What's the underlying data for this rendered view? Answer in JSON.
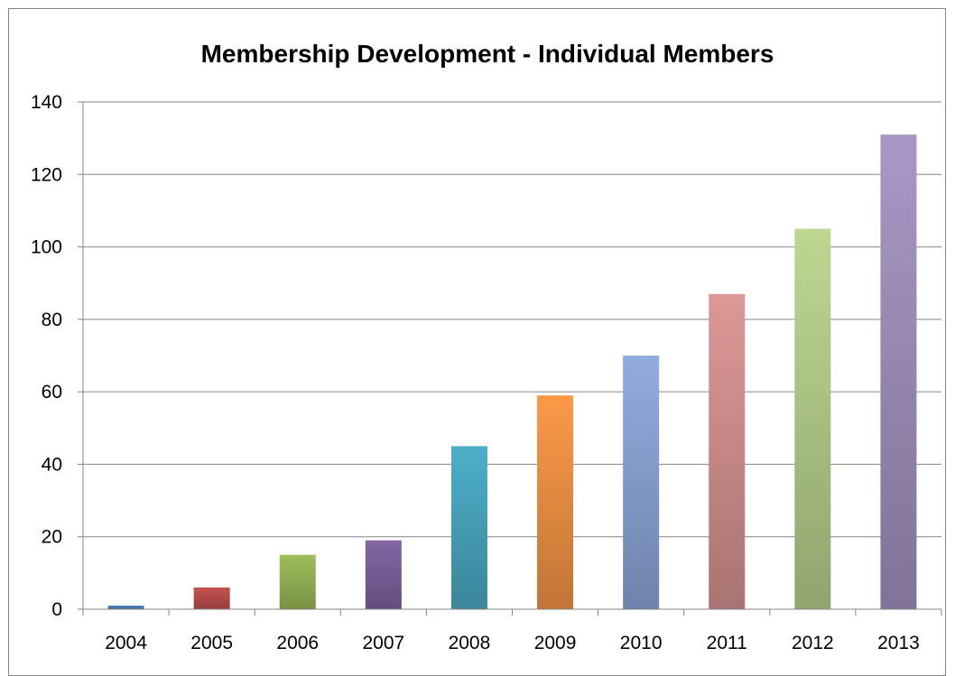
{
  "chart_data": {
    "type": "bar",
    "title": "Membership Development - Individual Members",
    "xlabel": "",
    "ylabel": "",
    "categories": [
      "2004",
      "2005",
      "2006",
      "2007",
      "2008",
      "2009",
      "2010",
      "2011",
      "2012",
      "2013"
    ],
    "values": [
      1,
      6,
      15,
      19,
      45,
      59,
      70,
      87,
      105,
      131
    ],
    "ylim": [
      0,
      140
    ],
    "yticks": [
      "0",
      "20",
      "40",
      "60",
      "80",
      "100",
      "120",
      "140"
    ],
    "grid": true,
    "legend": "none",
    "colors": [
      "#4F81BD",
      "#C0504D",
      "#9BBB59",
      "#8064A2",
      "#4BACC6",
      "#F79646",
      "#8EA9DB",
      "#D99594",
      "#B9D38E",
      "#A694C2"
    ]
  }
}
